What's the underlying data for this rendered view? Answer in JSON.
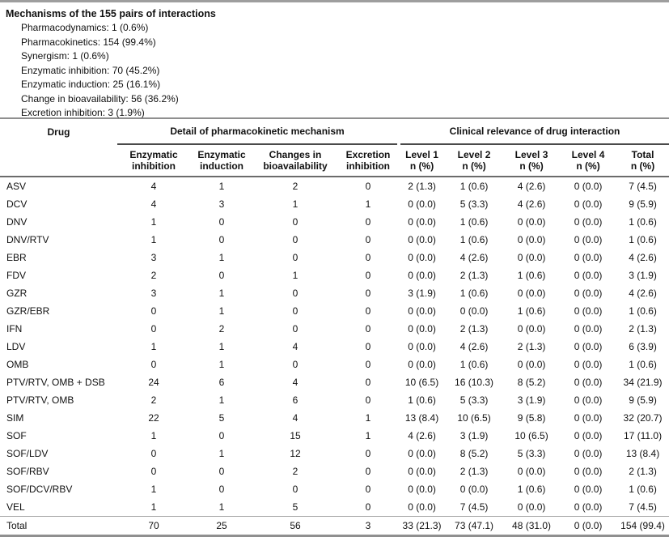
{
  "summary_box": {
    "title": "Mechanisms of the 155 pairs of interactions",
    "items": [
      "Pharmacodynamics: 1 (0.6%)",
      "Pharmacokinetics: 154 (99.4%)",
      "Synergism: 1 (0.6%)",
      "Enzymatic inhibition: 70 (45.2%)",
      "Enzymatic induction: 25 (16.1%)",
      "Change in bioavailability: 56 (36.2%)",
      "Excretion inhibition: 3 (1.9%)"
    ]
  },
  "table": {
    "drug_header": "Drug",
    "group_headers": [
      "Detail of pharmacokinetic mechanism",
      "Clinical relevance of drug interaction"
    ],
    "columns": [
      {
        "line1": "Enzymatic",
        "line2": "inhibition"
      },
      {
        "line1": "Enzymatic",
        "line2": "induction"
      },
      {
        "line1": "Changes in",
        "line2": "bioavailability"
      },
      {
        "line1": "Excretion",
        "line2": "inhibition"
      },
      {
        "line1": "Level 1",
        "line2": "n (%)"
      },
      {
        "line1": "Level 2",
        "line2": "n (%)"
      },
      {
        "line1": "Level 3",
        "line2": "n (%)"
      },
      {
        "line1": "Level 4",
        "line2": "n (%)"
      },
      {
        "line1": "Total",
        "line2": "n (%)"
      }
    ],
    "rows": [
      {
        "drug": "ASV",
        "values": [
          "4",
          "1",
          "2",
          "0",
          "2 (1.3)",
          "1 (0.6)",
          "4 (2.6)",
          "0 (0.0)",
          "7 (4.5)"
        ]
      },
      {
        "drug": "DCV",
        "values": [
          "4",
          "3",
          "1",
          "1",
          "0 (0.0)",
          "5 (3.3)",
          "4 (2.6)",
          "0 (0.0)",
          "9 (5.9)"
        ]
      },
      {
        "drug": "DNV",
        "values": [
          "1",
          "0",
          "0",
          "0",
          "0 (0.0)",
          "1 (0.6)",
          "0 (0.0)",
          "0 (0.0)",
          "1 (0.6)"
        ]
      },
      {
        "drug": "DNV/RTV",
        "values": [
          "1",
          "0",
          "0",
          "0",
          "0 (0.0)",
          "1 (0.6)",
          "0 (0.0)",
          "0 (0.0)",
          "1 (0.6)"
        ]
      },
      {
        "drug": "EBR",
        "values": [
          "3",
          "1",
          "0",
          "0",
          "0 (0.0)",
          "4 (2.6)",
          "0 (0.0)",
          "0 (0.0)",
          "4 (2.6)"
        ]
      },
      {
        "drug": "FDV",
        "values": [
          "2",
          "0",
          "1",
          "0",
          "0 (0.0)",
          "2 (1.3)",
          "1 (0.6)",
          "0 (0.0)",
          "3 (1.9)"
        ]
      },
      {
        "drug": "GZR",
        "values": [
          "3",
          "1",
          "0",
          "0",
          "3 (1.9)",
          "1 (0.6)",
          "0 (0.0)",
          "0 (0.0)",
          "4 (2.6)"
        ]
      },
      {
        "drug": "GZR/EBR",
        "values": [
          "0",
          "1",
          "0",
          "0",
          "0 (0.0)",
          "0 (0.0)",
          "1 (0.6)",
          "0 (0.0)",
          "1 (0.6)"
        ]
      },
      {
        "drug": "IFN",
        "values": [
          "0",
          "2",
          "0",
          "0",
          "0 (0.0)",
          "2 (1.3)",
          "0 (0.0)",
          "0 (0.0)",
          "2 (1.3)"
        ]
      },
      {
        "drug": "LDV",
        "values": [
          "1",
          "1",
          "4",
          "0",
          "0 (0.0)",
          "4 (2.6)",
          "2 (1.3)",
          "0 (0.0)",
          "6 (3.9)"
        ]
      },
      {
        "drug": "OMB",
        "values": [
          "0",
          "1",
          "0",
          "0",
          "0 (0.0)",
          "1 (0.6)",
          "0 (0.0)",
          "0 (0.0)",
          "1 (0.6)"
        ]
      },
      {
        "drug": "PTV/RTV, OMB + DSB",
        "values": [
          "24",
          "6",
          "4",
          "0",
          "10 (6.5)",
          "16 (10.3)",
          "8 (5.2)",
          "0 (0.0)",
          "34 (21.9)"
        ]
      },
      {
        "drug": "PTV/RTV, OMB",
        "values": [
          "2",
          "1",
          "6",
          "0",
          "1 (0.6)",
          "5 (3.3)",
          "3 (1.9)",
          "0 (0.0)",
          "9 (5.9)"
        ]
      },
      {
        "drug": "SIM",
        "values": [
          "22",
          "5",
          "4",
          "1",
          "13 (8.4)",
          "10 (6.5)",
          "9 (5.8)",
          "0 (0.0)",
          "32 (20.7)"
        ]
      },
      {
        "drug": "SOF",
        "values": [
          "1",
          "0",
          "15",
          "1",
          "4 (2.6)",
          "3 (1.9)",
          "10 (6.5)",
          "0 (0.0)",
          "17 (11.0)"
        ]
      },
      {
        "drug": "SOF/LDV",
        "values": [
          "0",
          "1",
          "12",
          "0",
          "0 (0.0)",
          "8 (5.2)",
          "5 (3.3)",
          "0 (0.0)",
          "13 (8.4)"
        ]
      },
      {
        "drug": "SOF/RBV",
        "values": [
          "0",
          "0",
          "2",
          "0",
          "0 (0.0)",
          "2 (1.3)",
          "0 (0.0)",
          "0 (0.0)",
          "2 (1.3)"
        ]
      },
      {
        "drug": "SOF/DCV/RBV",
        "values": [
          "1",
          "0",
          "0",
          "0",
          "0 (0.0)",
          "0 (0.0)",
          "1 (0.6)",
          "0 (0.0)",
          "1 (0.6)"
        ]
      },
      {
        "drug": "VEL",
        "values": [
          "1",
          "1",
          "5",
          "0",
          "0 (0.0)",
          "7 (4.5)",
          "0 (0.0)",
          "0 (0.0)",
          "7 (4.5)"
        ]
      }
    ],
    "total_row": {
      "drug": "Total",
      "values": [
        "70",
        "25",
        "56",
        "3",
        "33 (21.3)",
        "73 (47.1)",
        "48 (31.0)",
        "0 (0.0)",
        "154 (99.4)"
      ]
    }
  }
}
